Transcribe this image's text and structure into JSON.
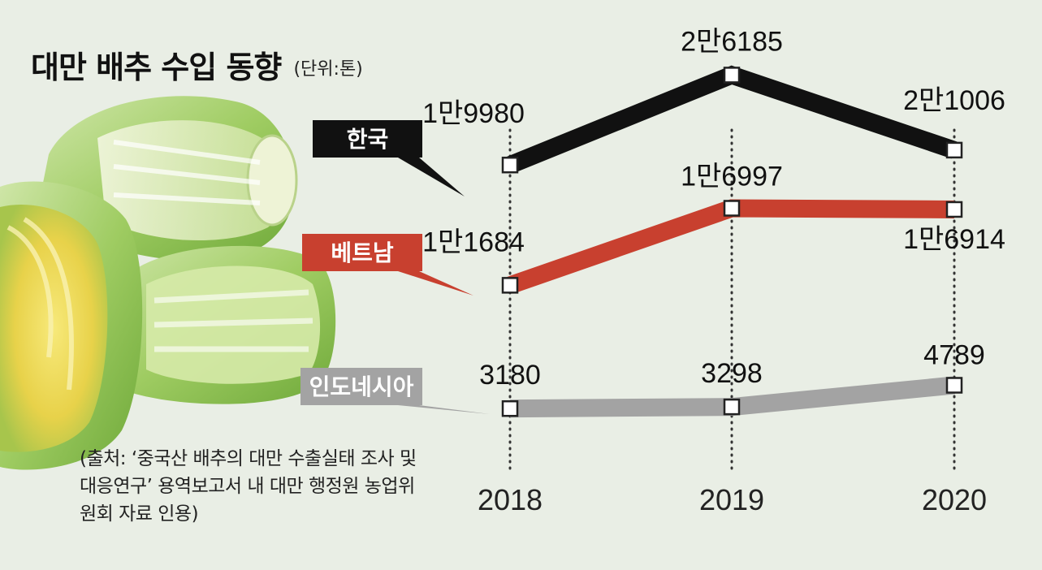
{
  "title": "대만 배추 수입 동향",
  "unit": "(단위:톤)",
  "source": "(출처: ‘중국산 배추의 대만 수출실태 조사 및 대응연구’ 용역보고서 내 대만 행정원 농업위원회 자료 인용)",
  "chart_data": {
    "type": "line",
    "categories": [
      "2018",
      "2019",
      "2020"
    ],
    "series": [
      {
        "name": "한국",
        "values": [
          19980,
          26185,
          21006
        ],
        "labels": [
          "1만9980",
          "2만6185",
          "2만1006"
        ],
        "color": "#111111",
        "tag_bg": "#111111",
        "tag_fg": "#ffffff"
      },
      {
        "name": "베트남",
        "values": [
          11684,
          16997,
          16914
        ],
        "labels": [
          "1만1684",
          "1만6997",
          "1만6914"
        ],
        "color": "#c8402f",
        "tag_bg": "#c8402f",
        "tag_fg": "#ffffff"
      },
      {
        "name": "인도네시아",
        "values": [
          3180,
          3298,
          4789
        ],
        "labels": [
          "3180",
          "3298",
          "4789"
        ],
        "color": "#a3a3a3",
        "tag_bg": "#a3a3a3",
        "tag_fg": "#ffffff"
      }
    ],
    "grid": false,
    "legend": "left-callouts",
    "ylim": [
      0,
      28000
    ]
  },
  "image": {
    "subject": "napa-cabbage-photo"
  }
}
